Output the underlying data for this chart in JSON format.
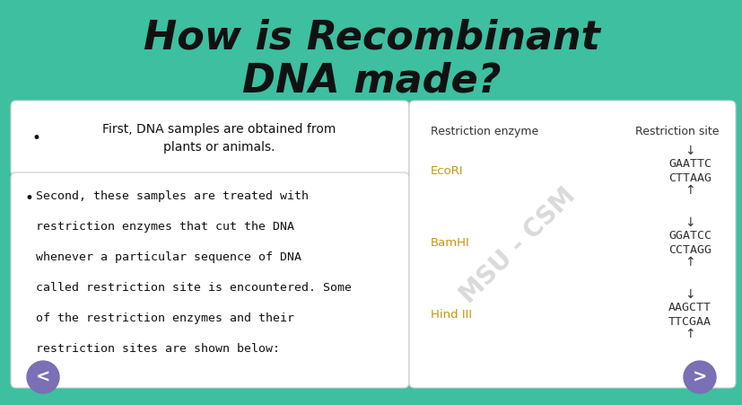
{
  "background_color": "#3dbfa0",
  "title_line1": "How is Recombinant",
  "title_line2": "DNA made?",
  "title_color": "#111111",
  "title_fontsize": 32,
  "left_box_color": "#ffffff",
  "right_box_color": "#ffffff",
  "text_color": "#111111",
  "enzyme_header": "Restriction enzyme",
  "site_header": "Restriction site",
  "enzyme_color": "#c8960a",
  "header_color": "#333333",
  "site_color": "#333333",
  "enzymes": [
    "EcoRI",
    "BamHI",
    "Hind III"
  ],
  "sites_top": [
    "GAATTC",
    "GGATCC",
    "AAGCTT"
  ],
  "sites_bottom": [
    "CTTAAG",
    "CCTAGG",
    "TTCGAA"
  ],
  "watermark": "MSU - CSM",
  "watermark_color": "#bbbbbb",
  "nav_circle_color": "#7b6fb5",
  "nav_left": "<",
  "nav_right": ">",
  "nav_color": "#ffffff"
}
